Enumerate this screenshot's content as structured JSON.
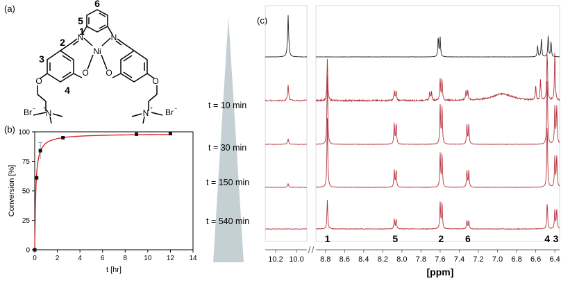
{
  "panels": {
    "a": "(a)",
    "b": "(b)",
    "c": "(c)"
  },
  "structure": {
    "atoms": {
      "ni": "Ni",
      "n1": "N",
      "n2": "N",
      "o1": "O",
      "o2": "O",
      "o3": "O",
      "o4": "O",
      "nplus1": "N",
      "nplus2": "N",
      "br1": "Br",
      "br2": "Br"
    },
    "numbers": {
      "n1": "1",
      "n2": "2",
      "n3": "3",
      "n4": "4",
      "n5": "5",
      "n6": "6"
    }
  },
  "chart_data": [
    {
      "type": "scatter",
      "xlabel": "t [hr]",
      "ylabel": "Conversion [%]",
      "xlim": [
        0,
        14
      ],
      "ylim": [
        0,
        100
      ],
      "xticks": [
        0,
        2,
        4,
        6,
        8,
        10,
        12,
        14
      ],
      "yticks": [
        0,
        25,
        50,
        75,
        100
      ],
      "points": [
        {
          "x": 0,
          "y": 0
        },
        {
          "x": 0.17,
          "y": 61
        },
        {
          "x": 0.5,
          "y": 84
        },
        {
          "x": 2.5,
          "y": 95
        },
        {
          "x": 9,
          "y": 98
        },
        {
          "x": 12,
          "y": 98.5
        }
      ],
      "error_bar": {
        "x": 0.5,
        "low": 77,
        "high": 91
      },
      "fit_color": "#d62728",
      "marker_color": "#111111"
    },
    {
      "type": "line",
      "xlabel": "[ppm]",
      "reversed": true,
      "xticks_left": [
        "10.2",
        "10.0"
      ],
      "xticks_right": [
        "8.8",
        "8.6",
        "8.4",
        "8.2",
        "8.0",
        "7.8",
        "7.6",
        "7.4",
        "7.2",
        "7.0",
        "6.8",
        "6.6",
        "6.4"
      ],
      "time_labels": [
        "t = 10 min",
        "t = 30 min",
        "t = 150 min",
        "t = 540 min"
      ],
      "peak_labels": [
        "1",
        "5",
        "2",
        "6",
        "4",
        "3"
      ],
      "trace_color": "#b2303a"
    }
  ]
}
